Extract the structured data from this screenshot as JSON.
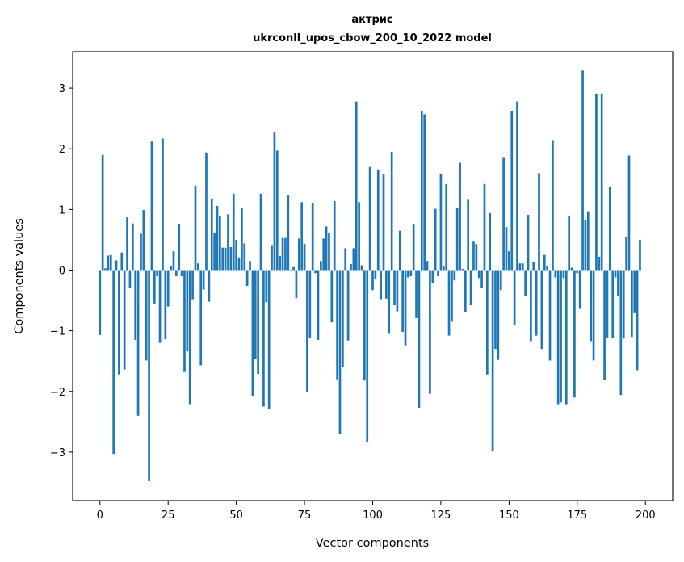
{
  "chart_data": {
    "type": "bar",
    "title_line1": "актрис",
    "title_line2": "ukrconll_upos_cbow_200_10_2022 model",
    "xlabel": "Vector components",
    "ylabel": "Components values",
    "xlim": [
      -10,
      210
    ],
    "ylim": [
      -3.8,
      3.6
    ],
    "xticks": [
      0,
      25,
      50,
      75,
      100,
      125,
      150,
      175,
      200
    ],
    "xtick_labels": [
      "0",
      "25",
      "50",
      "75",
      "100",
      "125",
      "150",
      "175",
      "200"
    ],
    "yticks": [
      -3,
      -2,
      -1,
      0,
      1,
      2,
      3
    ],
    "ytick_labels": [
      "−3",
      "−2",
      "−1",
      "0",
      "1",
      "2",
      "3"
    ],
    "bar_color": "#1f77b4",
    "values": [
      -1.07,
      1.9,
      0.03,
      0.24,
      0.25,
      -3.03,
      0.16,
      -1.72,
      0.29,
      -1.64,
      0.87,
      -0.3,
      0.77,
      -1.15,
      -2.4,
      0.6,
      0.99,
      -1.49,
      -3.48,
      2.12,
      -0.55,
      -0.1,
      -1.2,
      2.17,
      -1.14,
      -0.6,
      0.06,
      0.31,
      -0.1,
      0.76,
      -0.1,
      -1.68,
      -1.34,
      -2.21,
      -0.48,
      1.39,
      0.11,
      -1.57,
      -0.32,
      1.94,
      -0.52,
      1.18,
      0.62,
      1.06,
      0.9,
      0.37,
      0.37,
      0.92,
      0.38,
      1.26,
      0.5,
      0.21,
      1.02,
      0.44,
      -0.26,
      0.15,
      -2.08,
      -1.46,
      -1.71,
      1.26,
      -2.25,
      -0.53,
      -2.29,
      0.4,
      2.27,
      1.97,
      0.23,
      0.53,
      0.53,
      1.23,
      -0.02,
      0.05,
      -0.46,
      0.52,
      1.12,
      0.43,
      -2.01,
      -1.12,
      1.1,
      -0.05,
      -1.15,
      0.15,
      0.52,
      0.72,
      0.62,
      -0.86,
      1.14,
      -1.8,
      -2.7,
      -1.6,
      0.36,
      -1.16,
      0.1,
      0.36,
      2.78,
      1.12,
      0.08,
      -1.82,
      -2.84,
      1.7,
      -0.33,
      -0.14,
      1.66,
      -0.48,
      1.59,
      -0.47,
      -1.05,
      1.95,
      -0.58,
      -0.68,
      0.65,
      -1.02,
      -1.24,
      -0.12,
      -0.1,
      0.75,
      -0.79,
      -2.27,
      2.62,
      2.57,
      0.15,
      -2.04,
      -0.22,
      1.01,
      -0.1,
      1.59,
      0.07,
      1.42,
      -1.08,
      -0.85,
      -0.17,
      1.02,
      1.77,
      0.02,
      -0.69,
      1.16,
      -0.58,
      0.47,
      0.43,
      -0.13,
      -0.3,
      1.42,
      -1.72,
      0.94,
      -2.99,
      -1.3,
      -1.48,
      -0.33,
      1.85,
      0.71,
      0.31,
      2.62,
      -0.9,
      2.78,
      0.11,
      0.11,
      -0.42,
      0.91,
      -1.17,
      0.14,
      -1.08,
      1.6,
      -1.3,
      0.25,
      0.06,
      -1.49,
      2.13,
      -0.12,
      -2.21,
      -2.18,
      -0.13,
      -2.21,
      0.9,
      0.04,
      -2.1,
      -0.05,
      -0.64,
      3.29,
      0.83,
      0.97,
      -1.17,
      -1.49,
      2.91,
      0.22,
      2.91,
      -1.81,
      -1.11,
      1.37,
      -1.12,
      -0.12,
      -0.43,
      -2.06,
      -1.13,
      0.55,
      1.89,
      -1.1,
      -0.71,
      -1.65,
      0.5
    ]
  }
}
